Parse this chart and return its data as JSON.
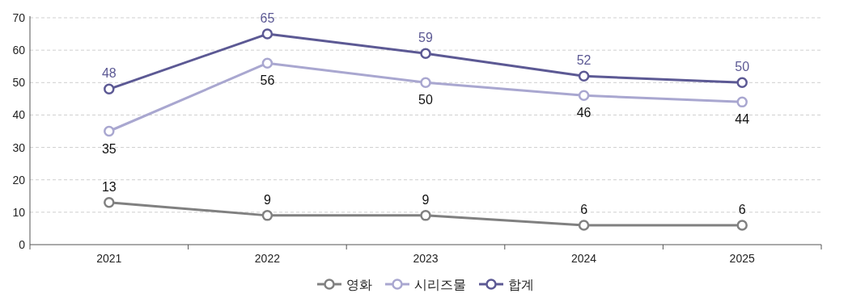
{
  "chart_data": {
    "type": "line",
    "categories": [
      "2021",
      "2022",
      "2023",
      "2024",
      "2025"
    ],
    "series": [
      {
        "name": "영화",
        "color": "#808080",
        "values": [
          13,
          9,
          9,
          6,
          6
        ]
      },
      {
        "name": "시리즈물",
        "color": "#a9a7d0",
        "values": [
          35,
          56,
          50,
          46,
          44
        ]
      },
      {
        "name": "합계",
        "color": "#5c5994",
        "values": [
          48,
          65,
          59,
          52,
          50
        ]
      }
    ],
    "ylim": [
      0,
      70
    ],
    "yticks": [
      0,
      10,
      20,
      30,
      40,
      50,
      60,
      70
    ],
    "grid": "y",
    "legend": "bottom",
    "marker": "circle",
    "line_style": "solid",
    "data_labels": true
  }
}
